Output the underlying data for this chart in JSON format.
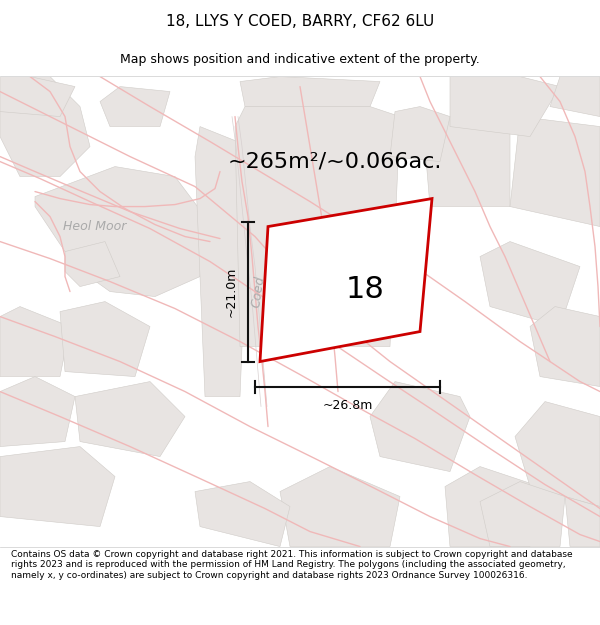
{
  "title": "18, LLYS Y COED, BARRY, CF62 6LU",
  "subtitle": "Map shows position and indicative extent of the property.",
  "area_text": "~265m²/~0.066ac.",
  "property_number": "18",
  "dim_width": "~26.8m",
  "dim_height": "~21.0m",
  "street_label": "Coed",
  "street_label2": "Heol Moor",
  "footer": "Contains OS data © Crown copyright and database right 2021. This information is subject to Crown copyright and database rights 2023 and is reproduced with the permission of HM Land Registry. The polygons (including the associated geometry, namely x, y co-ordinates) are subject to Crown copyright and database rights 2023 Ordnance Survey 100026316.",
  "map_bg": "#f7f5f5",
  "plot_stroke": "#cc0000",
  "road_line": "#f0b8b8",
  "road_line2": "#d8d0d0",
  "block_fill": "#e8e4e2",
  "block_edge": "#d0ccc8",
  "dim_line_color": "#111111",
  "label_color": "#aaaaaa",
  "title_size": 11,
  "subtitle_size": 9,
  "area_text_size": 16,
  "prop_num_size": 22,
  "dim_text_size": 9,
  "label_size": 9,
  "footer_size": 6.5
}
